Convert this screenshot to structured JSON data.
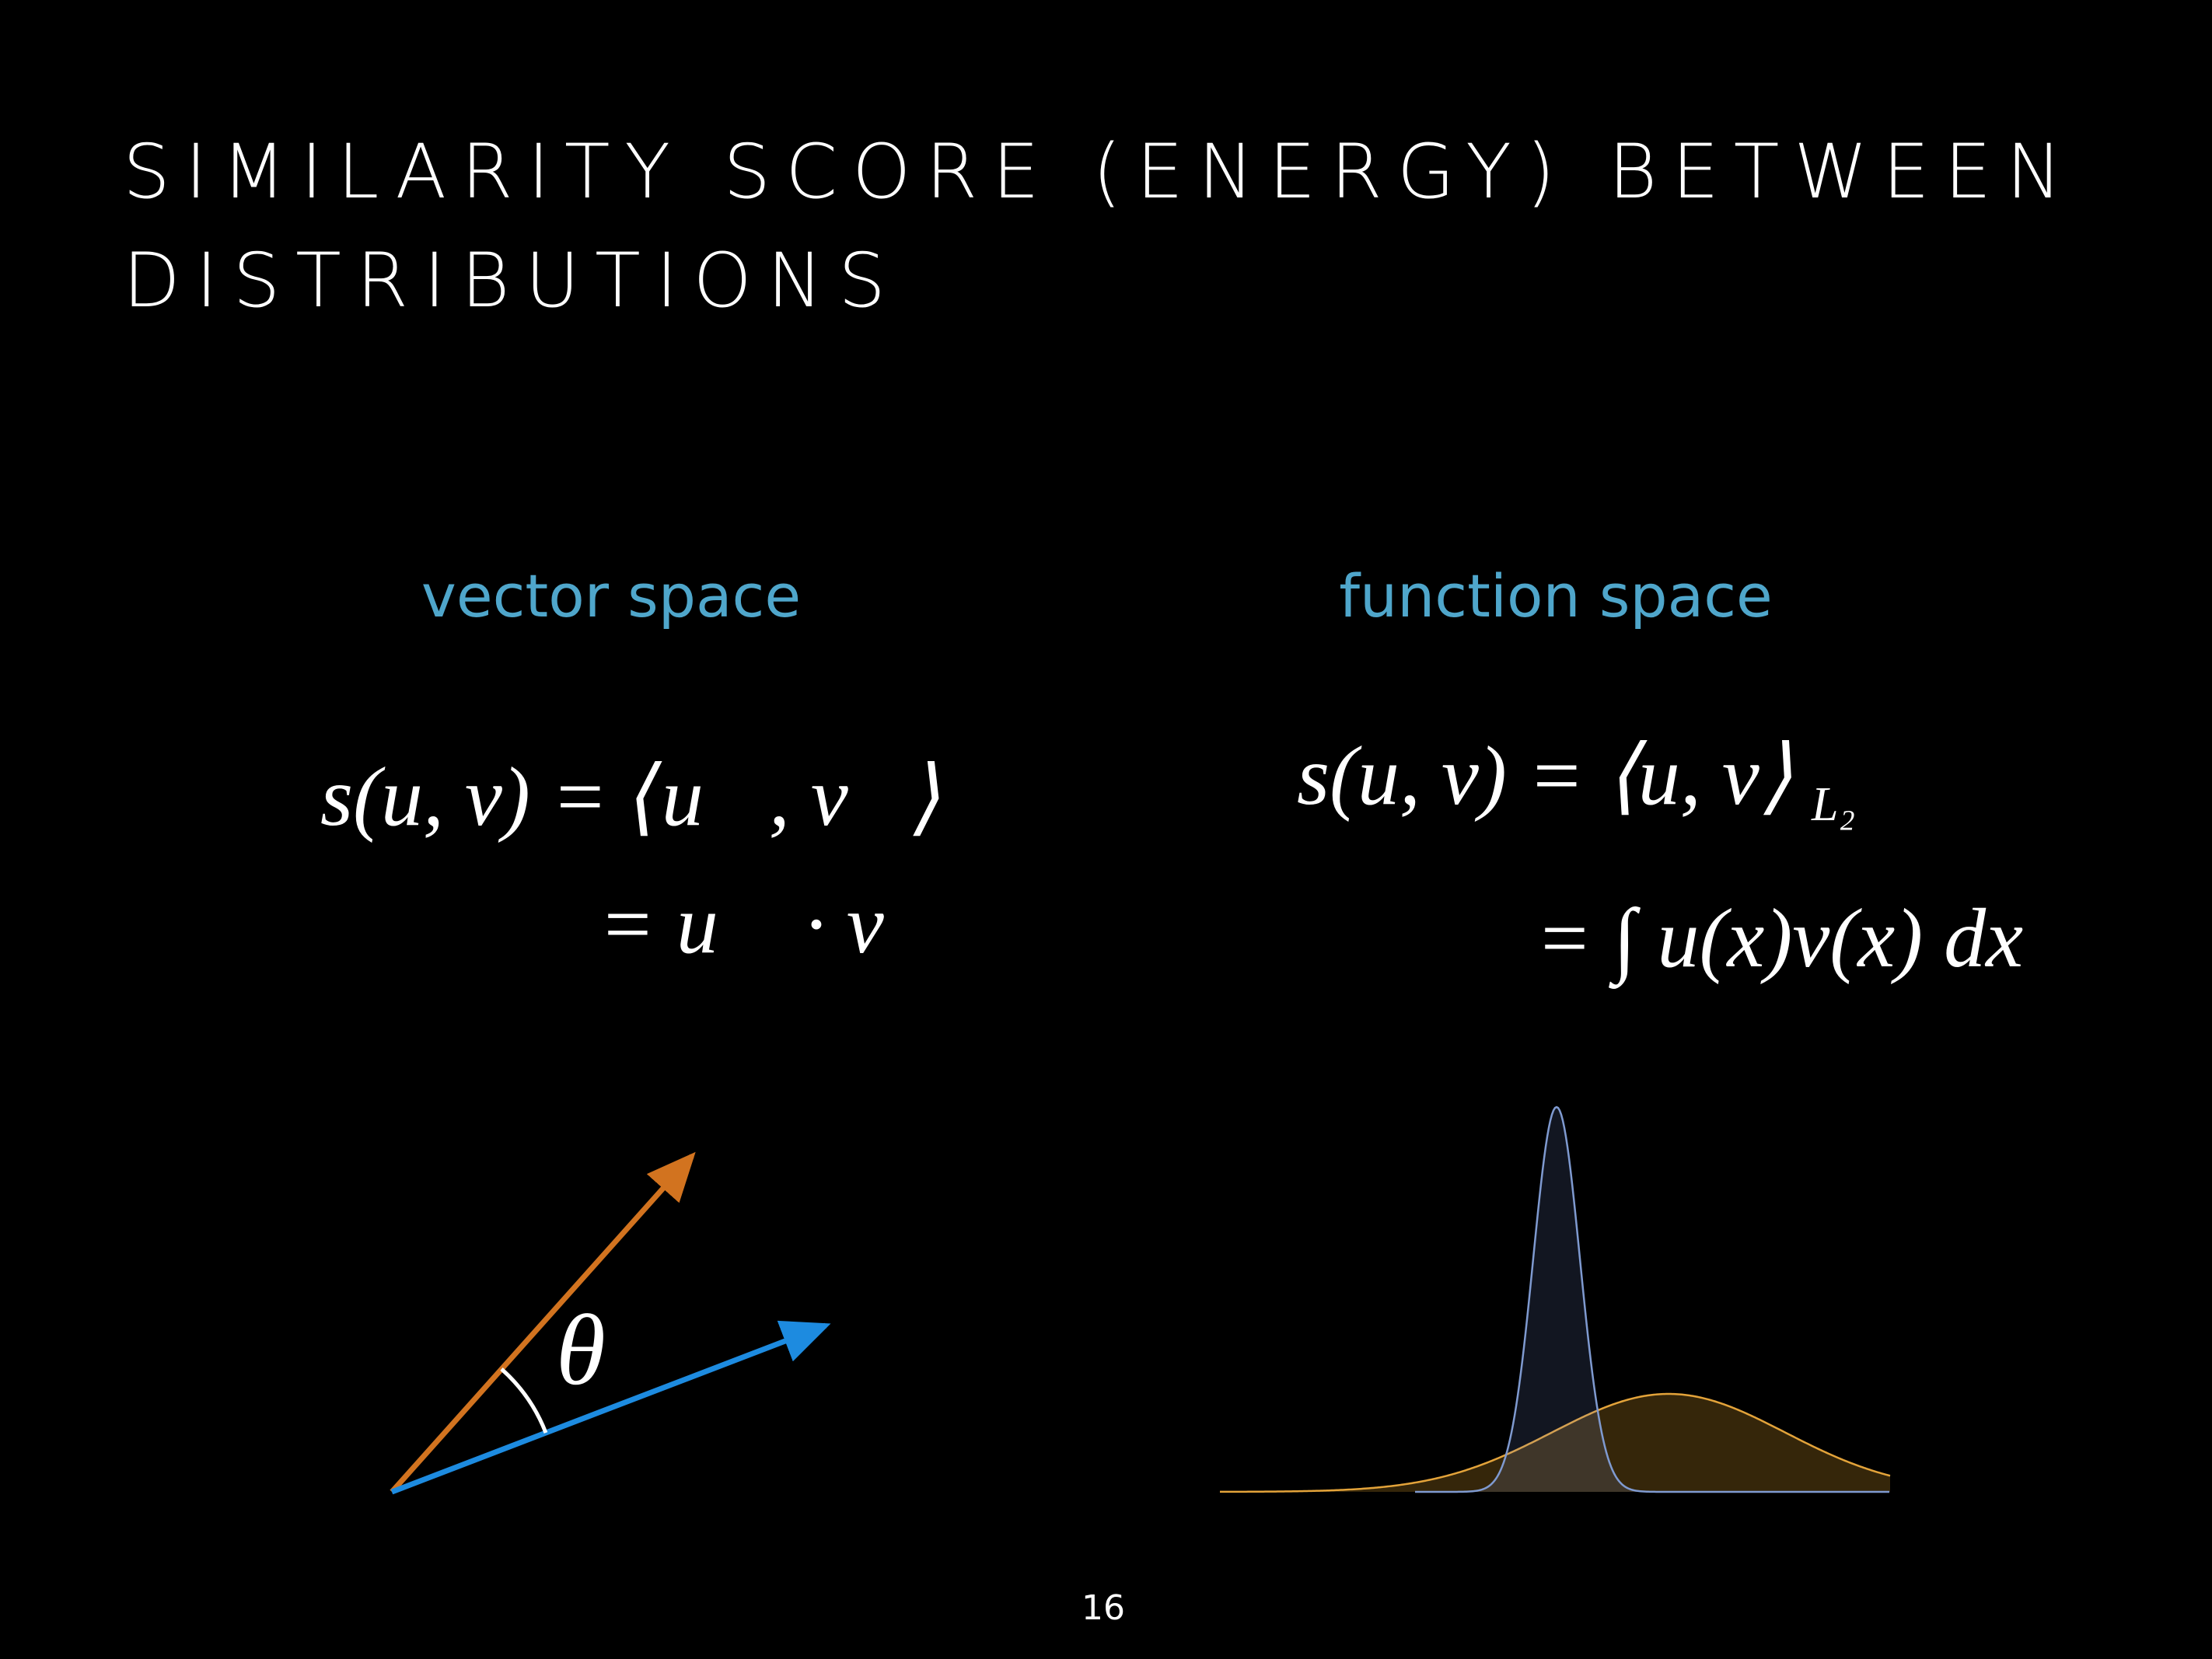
{
  "slide": {
    "title_lines": [
      "SIMILARITY SCORE (ENERGY) BETWEEN",
      "DISTRIBUTIONS"
    ],
    "left": {
      "heading": "vector space",
      "equation_lines": [
        "s(u, v) = ⟨u⃗, v⃗⟩",
        "= u⃗ · v⃗"
      ],
      "angle_label": "θ"
    },
    "right": {
      "heading": "function space",
      "equation_lines": [
        "s(u, v) = ⟨u, v⟩",
        "= ∫ u(x)v(x) dx"
      ],
      "equation_subscript": "L₂"
    },
    "page_number": "16"
  }
}
